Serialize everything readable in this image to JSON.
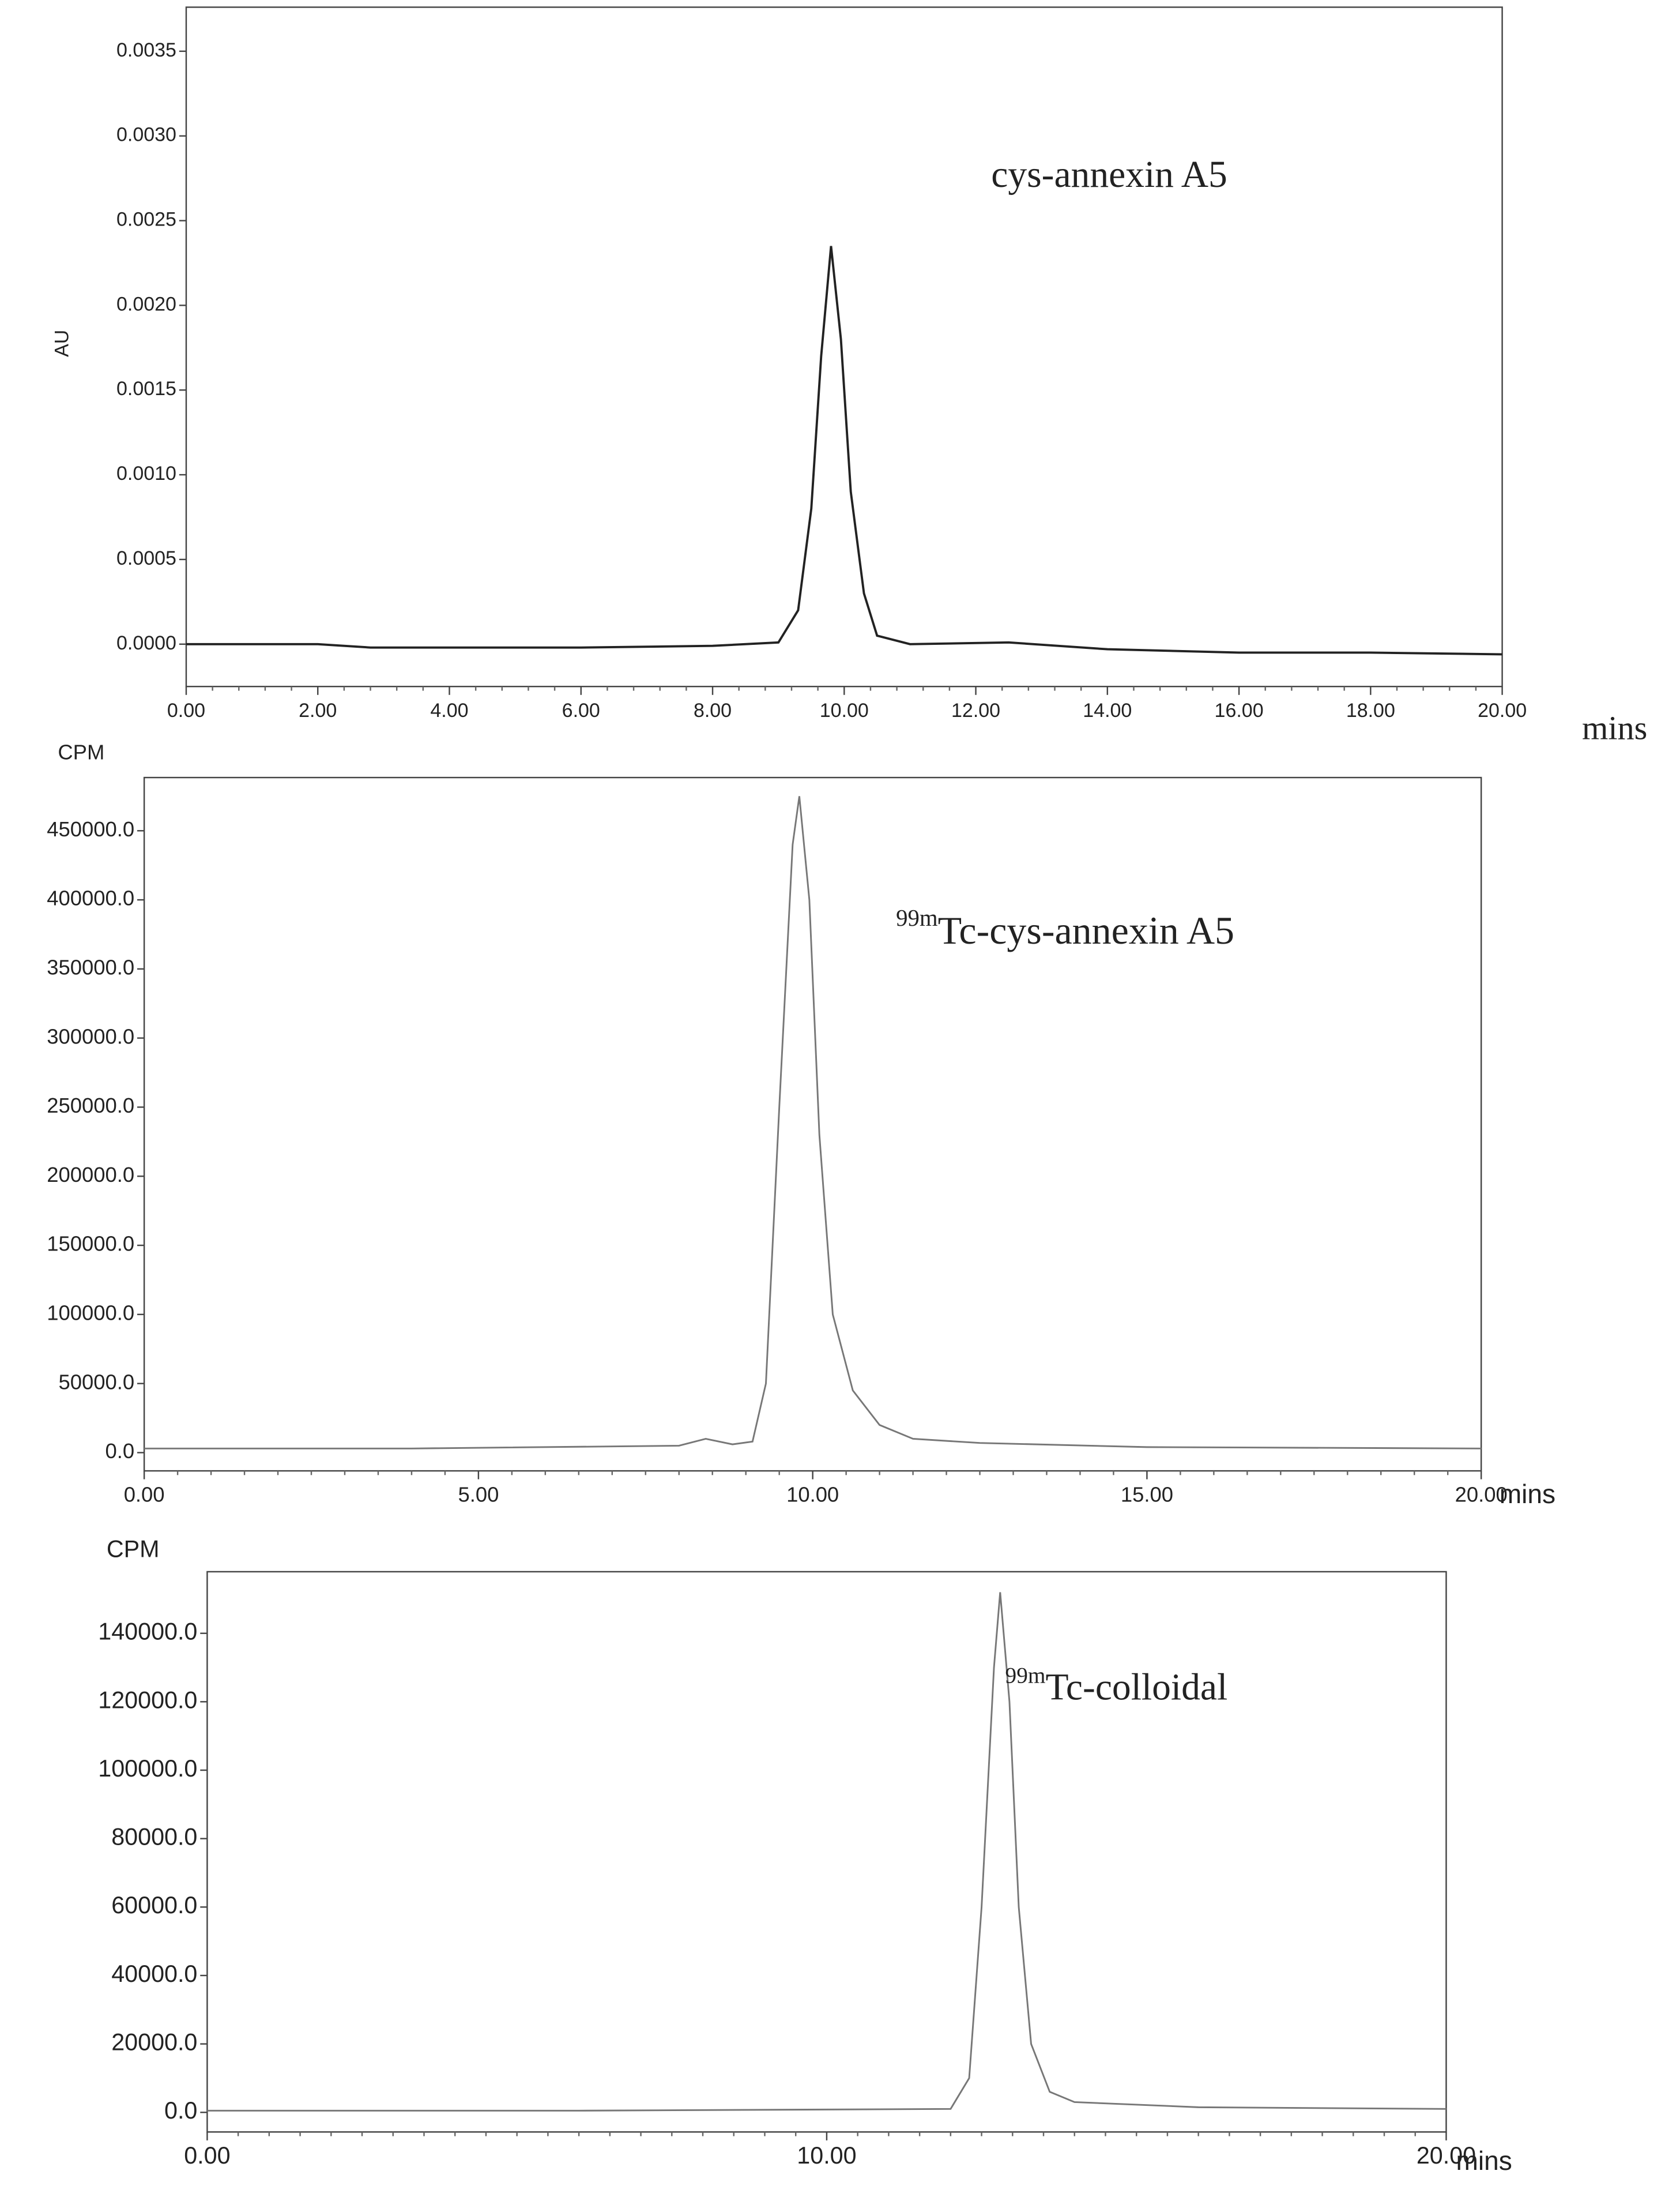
{
  "chart_data": [
    {
      "type": "line",
      "y_label": "AU",
      "annotation": "cys-annexin A5",
      "x_unit": "mins",
      "x": [
        0,
        2,
        2.8,
        4,
        6,
        8,
        9.0,
        9.3,
        9.5,
        9.65,
        9.8,
        9.95,
        10.1,
        10.3,
        10.5,
        11,
        12.5,
        14,
        16,
        18,
        20
      ],
      "values": [
        0,
        0,
        -2e-05,
        -2e-05,
        -2e-05,
        -1e-05,
        1e-05,
        0.0002,
        0.0008,
        0.0017,
        0.00235,
        0.0018,
        0.0009,
        0.0003,
        5e-05,
        0,
        1e-05,
        -3e-05,
        -5e-05,
        -5e-05,
        -6e-05
      ],
      "color": "#222222",
      "xlim": [
        0,
        20
      ],
      "xticks": [
        {
          "value": 0,
          "label": "0.00"
        },
        {
          "value": 2,
          "label": "2.00"
        },
        {
          "value": 4,
          "label": "4.00"
        },
        {
          "value": 6,
          "label": "6.00"
        },
        {
          "value": 8,
          "label": "8.00"
        },
        {
          "value": 10,
          "label": "10.00"
        },
        {
          "value": 12,
          "label": "12.00"
        },
        {
          "value": 14,
          "label": "14.00"
        },
        {
          "value": 16,
          "label": "16.00"
        },
        {
          "value": 18,
          "label": "18.00"
        },
        {
          "value": 20,
          "label": "20.00"
        }
      ],
      "ylim": [
        -0.00025,
        0.00376
      ],
      "yticks": [
        {
          "value": 0,
          "label": "0.0000"
        },
        {
          "value": 0.0005,
          "label": "0.0005"
        },
        {
          "value": 0.001,
          "label": "0.0010"
        },
        {
          "value": 0.0015,
          "label": "0.0015"
        },
        {
          "value": 0.002,
          "label": "0.0020"
        },
        {
          "value": 0.0025,
          "label": "0.0025"
        },
        {
          "value": 0.003,
          "label": "0.0030"
        },
        {
          "value": 0.0035,
          "label": "0.0035"
        }
      ]
    },
    {
      "type": "line",
      "y_label": "CPM",
      "annotation": {
        "sup": "99m",
        "text": "Tc-cys-annexin A5"
      },
      "x_unit": "mins",
      "x": [
        0,
        4,
        8.0,
        8.4,
        8.8,
        9.1,
        9.3,
        9.5,
        9.7,
        9.8,
        9.95,
        10.1,
        10.3,
        10.6,
        11,
        11.5,
        12.5,
        15,
        20
      ],
      "values": [
        3000,
        3000,
        5000,
        10000,
        6000,
        8000,
        50000,
        250000,
        440000,
        475000,
        400000,
        230000,
        100000,
        45000,
        20000,
        10000,
        7000,
        4000,
        3000
      ],
      "color": "#777777",
      "xlim": [
        0,
        20
      ],
      "xticks": [
        {
          "value": 0,
          "label": "0.00"
        },
        {
          "value": 5,
          "label": "5.00"
        },
        {
          "value": 10,
          "label": "10.00"
        },
        {
          "value": 15,
          "label": "15.00"
        },
        {
          "value": 20,
          "label": "20.00"
        }
      ],
      "ylim": [
        -13200,
        488500
      ],
      "yticks": [
        {
          "value": 0,
          "label": "0.0"
        },
        {
          "value": 50000,
          "label": "50000.0"
        },
        {
          "value": 100000,
          "label": "100000.0"
        },
        {
          "value": 150000,
          "label": "150000.0"
        },
        {
          "value": 200000,
          "label": "200000.0"
        },
        {
          "value": 250000,
          "label": "250000.0"
        },
        {
          "value": 300000,
          "label": "300000.0"
        },
        {
          "value": 350000,
          "label": "350000.0"
        },
        {
          "value": 400000,
          "label": "400000.0"
        },
        {
          "value": 450000,
          "label": "450000.0"
        }
      ]
    },
    {
      "type": "line",
      "y_label": "CPM",
      "annotation": {
        "sup": "99m",
        "text": "Tc-colloidal"
      },
      "x_unit": "mins",
      "x": [
        0,
        6,
        12.0,
        12.3,
        12.5,
        12.7,
        12.8,
        12.95,
        13.1,
        13.3,
        13.6,
        14,
        16,
        20
      ],
      "values": [
        500,
        500,
        1000,
        10000,
        60000,
        130000,
        152000,
        120000,
        60000,
        20000,
        6000,
        3000,
        1500,
        1000
      ],
      "color": "#777777",
      "xlim": [
        0,
        20
      ],
      "xticks": [
        {
          "value": 0,
          "label": "0.00"
        },
        {
          "value": 10,
          "label": "10.00"
        },
        {
          "value": 20,
          "label": "20.00"
        }
      ],
      "ylim": [
        -5730,
        158000
      ],
      "yticks": [
        {
          "value": 0,
          "label": "0.0"
        },
        {
          "value": 20000,
          "label": "20000.0"
        },
        {
          "value": 40000,
          "label": "40000.0"
        },
        {
          "value": 60000,
          "label": "60000.0"
        },
        {
          "value": 80000,
          "label": "80000.0"
        },
        {
          "value": 100000,
          "label": "100000.0"
        },
        {
          "value": 120000,
          "label": "120000.0"
        },
        {
          "value": 140000,
          "label": "140000.0"
        }
      ]
    }
  ]
}
